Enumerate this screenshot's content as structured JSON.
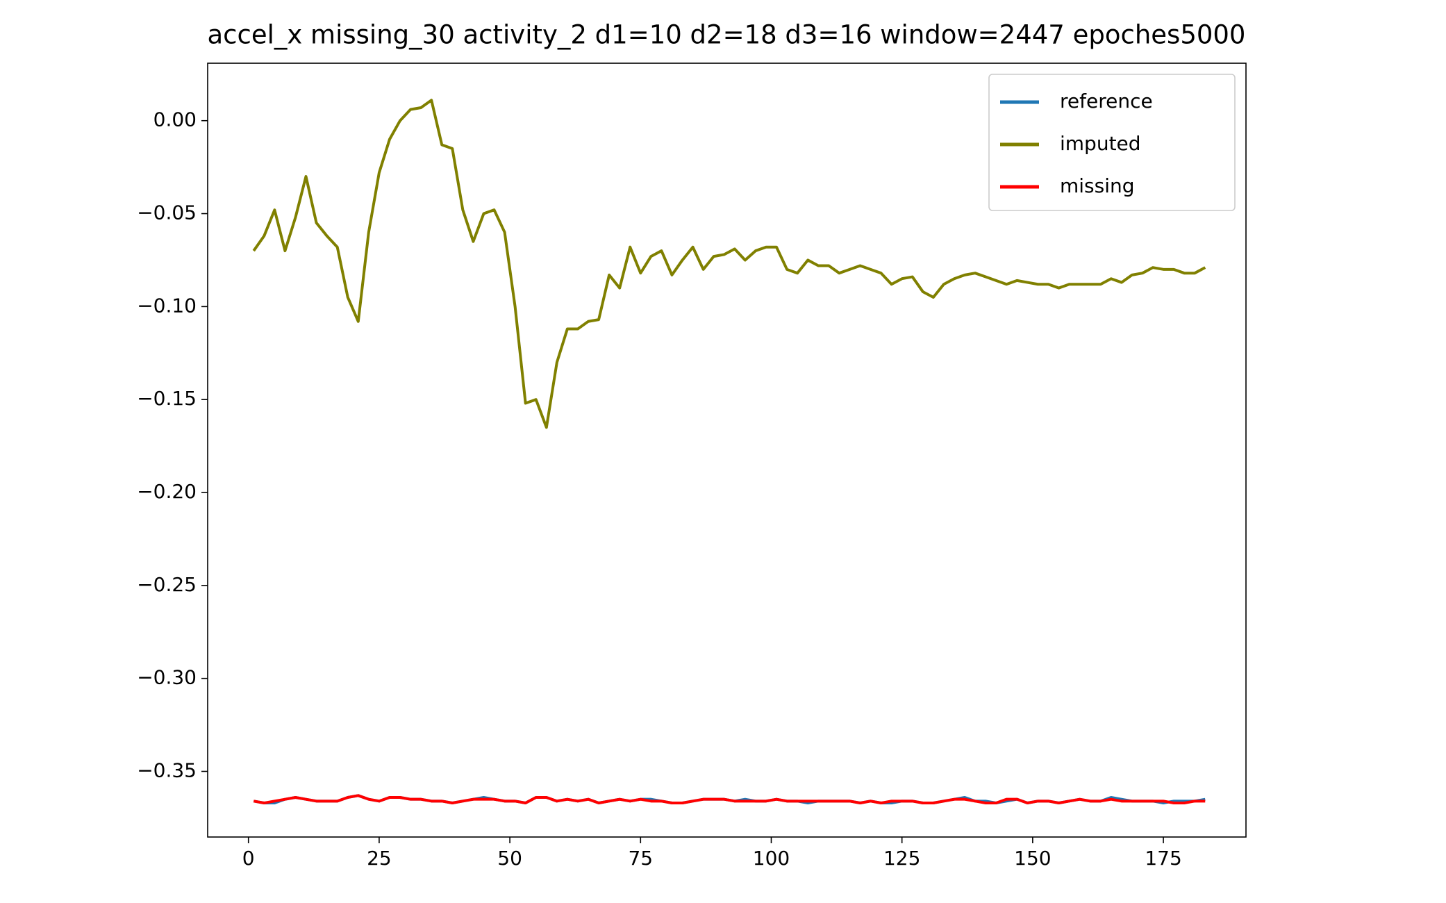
{
  "chart_data": {
    "type": "line",
    "title": "accel_x missing_30 activity_2 d1=10 d2=18 d3=16 window=2447 epoches5000",
    "x": [
      1,
      3,
      5,
      7,
      9,
      11,
      13,
      15,
      17,
      19,
      21,
      23,
      25,
      27,
      29,
      31,
      33,
      35,
      37,
      39,
      41,
      43,
      45,
      47,
      49,
      51,
      53,
      55,
      57,
      59,
      61,
      63,
      65,
      67,
      69,
      71,
      73,
      75,
      77,
      79,
      81,
      83,
      85,
      87,
      89,
      91,
      93,
      95,
      97,
      99,
      101,
      103,
      105,
      107,
      109,
      111,
      113,
      115,
      117,
      119,
      121,
      123,
      125,
      127,
      129,
      131,
      133,
      135,
      137,
      139,
      141,
      143,
      145,
      147,
      149,
      151,
      153,
      155,
      157,
      159,
      161,
      163,
      165,
      167,
      169,
      171,
      173,
      175,
      177,
      179,
      181,
      183
    ],
    "series": [
      {
        "name": "reference",
        "color": "#1f77b4",
        "values": [
          -0.366,
          -0.367,
          -0.367,
          -0.365,
          -0.364,
          -0.365,
          -0.366,
          -0.366,
          -0.366,
          -0.364,
          -0.363,
          -0.365,
          -0.366,
          -0.364,
          -0.364,
          -0.365,
          -0.365,
          -0.366,
          -0.366,
          -0.367,
          -0.366,
          -0.365,
          -0.364,
          -0.365,
          -0.366,
          -0.366,
          -0.367,
          -0.364,
          -0.364,
          -0.366,
          -0.365,
          -0.366,
          -0.365,
          -0.367,
          -0.366,
          -0.365,
          -0.366,
          -0.365,
          -0.365,
          -0.366,
          -0.367,
          -0.367,
          -0.366,
          -0.365,
          -0.365,
          -0.365,
          -0.366,
          -0.365,
          -0.366,
          -0.366,
          -0.365,
          -0.366,
          -0.366,
          -0.367,
          -0.366,
          -0.366,
          -0.366,
          -0.366,
          -0.367,
          -0.366,
          -0.367,
          -0.367,
          -0.366,
          -0.366,
          -0.367,
          -0.367,
          -0.366,
          -0.365,
          -0.364,
          -0.366,
          -0.366,
          -0.367,
          -0.366,
          -0.365,
          -0.367,
          -0.366,
          -0.366,
          -0.367,
          -0.366,
          -0.365,
          -0.366,
          -0.366,
          -0.364,
          -0.365,
          -0.366,
          -0.366,
          -0.366,
          -0.367,
          -0.366,
          -0.366,
          -0.366,
          -0.365
        ]
      },
      {
        "name": "imputed",
        "color": "#808000",
        "values": [
          -0.07,
          -0.062,
          -0.048,
          -0.07,
          -0.052,
          -0.03,
          -0.055,
          -0.062,
          -0.068,
          -0.095,
          -0.108,
          -0.06,
          -0.028,
          -0.01,
          0.0,
          0.006,
          0.007,
          0.011,
          -0.013,
          -0.015,
          -0.048,
          -0.065,
          -0.05,
          -0.048,
          -0.06,
          -0.1,
          -0.152,
          -0.15,
          -0.165,
          -0.13,
          -0.112,
          -0.112,
          -0.108,
          -0.107,
          -0.083,
          -0.09,
          -0.068,
          -0.082,
          -0.073,
          -0.07,
          -0.083,
          -0.075,
          -0.068,
          -0.08,
          -0.073,
          -0.072,
          -0.069,
          -0.075,
          -0.07,
          -0.068,
          -0.068,
          -0.08,
          -0.082,
          -0.075,
          -0.078,
          -0.078,
          -0.082,
          -0.08,
          -0.078,
          -0.08,
          -0.082,
          -0.088,
          -0.085,
          -0.084,
          -0.092,
          -0.095,
          -0.088,
          -0.085,
          -0.083,
          -0.082,
          -0.084,
          -0.086,
          -0.088,
          -0.086,
          -0.087,
          -0.088,
          -0.088,
          -0.09,
          -0.088,
          -0.088,
          -0.088,
          -0.088,
          -0.085,
          -0.087,
          -0.083,
          -0.082,
          -0.079,
          -0.08,
          -0.08,
          -0.082,
          -0.082,
          -0.079
        ]
      },
      {
        "name": "missing",
        "color": "#ff0000",
        "values": [
          -0.366,
          -0.367,
          -0.366,
          -0.365,
          -0.364,
          -0.365,
          -0.366,
          -0.366,
          -0.366,
          -0.364,
          -0.363,
          -0.365,
          -0.366,
          -0.364,
          -0.364,
          -0.365,
          -0.365,
          -0.366,
          -0.366,
          -0.367,
          -0.366,
          -0.365,
          -0.365,
          -0.365,
          -0.366,
          -0.366,
          -0.367,
          -0.364,
          -0.364,
          -0.366,
          -0.365,
          -0.366,
          -0.365,
          -0.367,
          -0.366,
          -0.365,
          -0.366,
          -0.365,
          -0.366,
          -0.366,
          -0.367,
          -0.367,
          -0.366,
          -0.365,
          -0.365,
          -0.365,
          -0.366,
          -0.366,
          -0.366,
          -0.366,
          -0.365,
          -0.366,
          -0.366,
          -0.366,
          -0.366,
          -0.366,
          -0.366,
          -0.366,
          -0.367,
          -0.366,
          -0.367,
          -0.366,
          -0.366,
          -0.366,
          -0.367,
          -0.367,
          -0.366,
          -0.365,
          -0.365,
          -0.366,
          -0.367,
          -0.367,
          -0.365,
          -0.365,
          -0.367,
          -0.366,
          -0.366,
          -0.367,
          -0.366,
          -0.365,
          -0.366,
          -0.366,
          -0.365,
          -0.366,
          -0.366,
          -0.366,
          -0.366,
          -0.366,
          -0.367,
          -0.367,
          -0.366,
          -0.366
        ]
      }
    ],
    "xlim": [
      -7.8,
      190.8
    ],
    "xticks": [
      0,
      25,
      50,
      75,
      100,
      125,
      150,
      175
    ],
    "ylim": [
      -0.3853,
      0.0309
    ],
    "yticks": [
      {
        "value": 0,
        "label": "0.00"
      },
      {
        "value": -0.05,
        "label": "−0.05"
      },
      {
        "value": -0.1,
        "label": "−0.10"
      },
      {
        "value": -0.15,
        "label": "−0.15"
      },
      {
        "value": -0.2,
        "label": "−0.20"
      },
      {
        "value": -0.25,
        "label": "−0.25"
      },
      {
        "value": -0.3,
        "label": "−0.30"
      },
      {
        "value": -0.35,
        "label": "−0.35"
      }
    ],
    "legend": "upper right"
  }
}
